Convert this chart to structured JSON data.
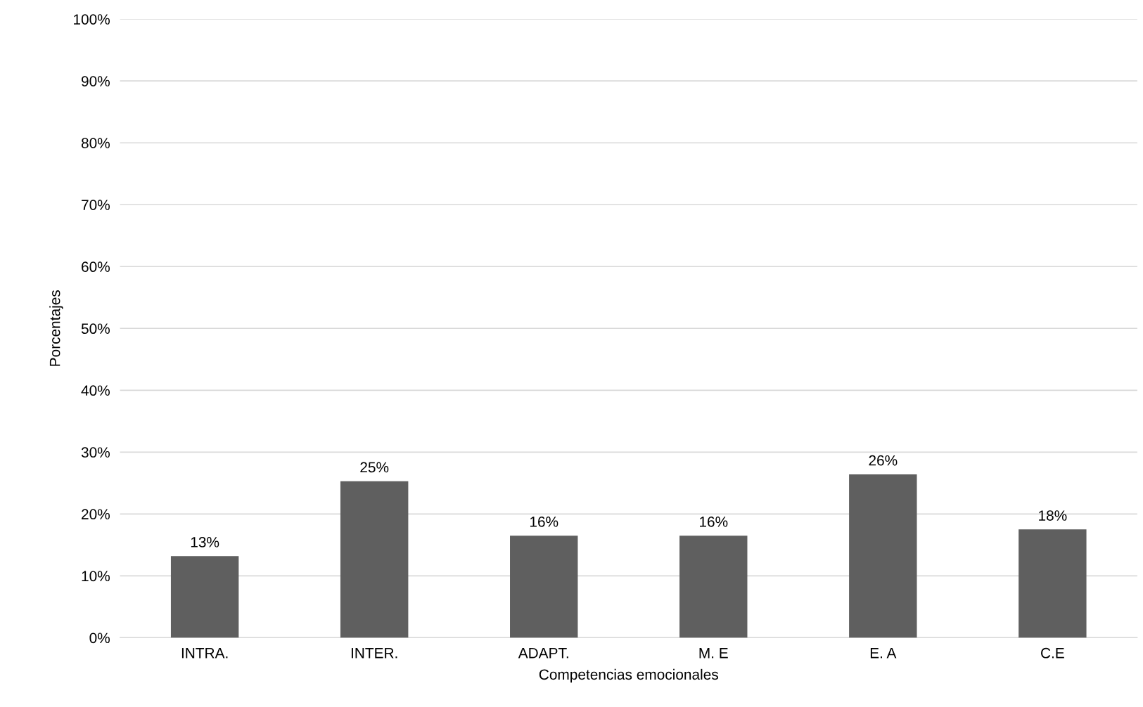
{
  "chart_data": {
    "type": "bar",
    "xlabel": "Competencias emocionales",
    "ylabel": "Porcentajes",
    "categories": [
      "INTRA.",
      "INTER.",
      "ADAPT.",
      "M. E",
      "E. A",
      "C.E"
    ],
    "values": [
      13.2,
      25.3,
      16.5,
      16.5,
      26.4,
      17.5
    ],
    "value_labels": [
      "13%",
      "25%",
      "16%",
      "16%",
      "26%",
      "18%"
    ],
    "color": "#5f5f5f",
    "ylim": [
      0,
      100
    ],
    "yticks": [
      {
        "value": 0,
        "label": "0%"
      },
      {
        "value": 10,
        "label": "10%"
      },
      {
        "value": 20,
        "label": "20%"
      },
      {
        "value": 30,
        "label": "30%"
      },
      {
        "value": 40,
        "label": "40%"
      },
      {
        "value": 50,
        "label": "50%"
      },
      {
        "value": 60,
        "label": "60%"
      },
      {
        "value": 70,
        "label": "70%"
      },
      {
        "value": 80,
        "label": "80%"
      },
      {
        "value": 90,
        "label": "90%"
      },
      {
        "value": 100,
        "label": "100%"
      }
    ],
    "grid": "y",
    "legend": false
  }
}
